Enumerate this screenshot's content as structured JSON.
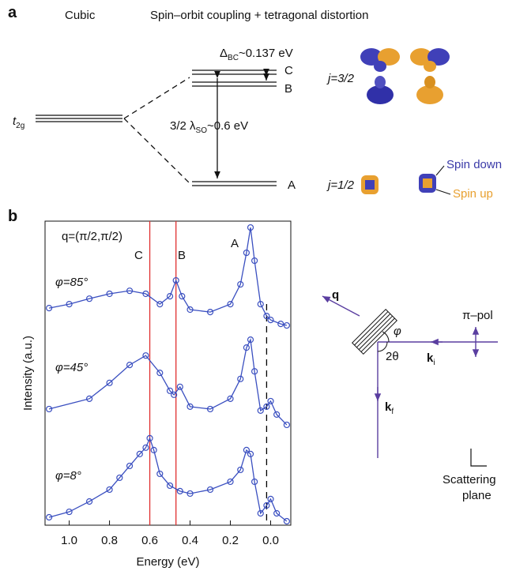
{
  "panel_a": {
    "label": "a",
    "col_cubic": "Cubic",
    "col_soc": "Spin–orbit coupling + tetragonal distortion",
    "t2g": [
      "t",
      "2g"
    ],
    "delta": [
      "Δ",
      "BC",
      "~0.137 eV"
    ],
    "level_c": "C",
    "level_b": "B",
    "level_a": "A",
    "j32": "j=3/2",
    "j12": "j=1/2",
    "soc": [
      "3/2 λ",
      "SO",
      "~0.6 eV"
    ],
    "spin_down": "Spin down",
    "spin_up": "Spin up"
  },
  "panel_b_label": "b",
  "chart_data": {
    "type": "line",
    "x_label": "Energy (eV)",
    "y_label": "Intensity (a.u.)",
    "annotation": "q=(π/2,π/2)",
    "peak_labels": [
      "C",
      "B",
      "A"
    ],
    "xlim": [
      1.12,
      -0.1
    ],
    "ylim": [
      0,
      10
    ],
    "xticks": [
      {
        "value": 1,
        "label": "1.0"
      },
      0.8,
      0.6,
      0.4,
      0.2,
      {
        "value": 0,
        "label": "0.0"
      }
    ],
    "vlines": [
      {
        "x": 0.6,
        "color": "#e03030",
        "style": "solid"
      },
      {
        "x": 0.47,
        "color": "#e03030",
        "style": "solid"
      },
      {
        "x": 0.02,
        "color": "#000000",
        "style": "dashed"
      }
    ],
    "series": [
      {
        "name": "φ=85°",
        "color": "#3a4fc0",
        "x": [
          1.1,
          1.0,
          0.9,
          0.8,
          0.7,
          0.62,
          0.55,
          0.5,
          0.47,
          0.44,
          0.4,
          0.3,
          0.2,
          0.15,
          0.12,
          0.1,
          0.08,
          0.05,
          0.02,
          0.0,
          -0.05,
          -0.08
        ],
        "values": [
          7.14,
          7.27,
          7.45,
          7.61,
          7.71,
          7.61,
          7.27,
          7.53,
          8.05,
          7.53,
          7.09,
          7.01,
          7.27,
          7.92,
          8.96,
          9.79,
          8.7,
          7.27,
          6.88,
          6.75,
          6.62,
          6.57
        ]
      },
      {
        "name": "φ=45°",
        "color": "#3a4fc0",
        "x": [
          1.1,
          0.9,
          0.8,
          0.7,
          0.62,
          0.55,
          0.5,
          0.48,
          0.45,
          0.4,
          0.3,
          0.2,
          0.15,
          0.12,
          0.1,
          0.08,
          0.05,
          0.02,
          0.0,
          -0.03,
          -0.08
        ],
        "values": [
          3.82,
          4.16,
          4.68,
          5.27,
          5.58,
          5.01,
          4.42,
          4.29,
          4.55,
          3.9,
          3.82,
          4.16,
          4.81,
          5.84,
          6.1,
          5.06,
          3.77,
          3.9,
          4.08,
          3.64,
          3.3
        ]
      },
      {
        "name": "φ=8°",
        "color": "#3a4fc0",
        "x": [
          1.1,
          1.0,
          0.9,
          0.8,
          0.75,
          0.7,
          0.65,
          0.62,
          0.6,
          0.58,
          0.55,
          0.5,
          0.45,
          0.4,
          0.3,
          0.2,
          0.15,
          0.12,
          0.1,
          0.08,
          0.05,
          0.02,
          0.0,
          -0.03,
          -0.08
        ],
        "values": [
          0.26,
          0.44,
          0.78,
          1.17,
          1.56,
          1.95,
          2.34,
          2.55,
          2.86,
          2.47,
          1.69,
          1.3,
          1.12,
          1.04,
          1.17,
          1.43,
          1.82,
          2.47,
          2.34,
          1.43,
          0.39,
          0.65,
          0.86,
          0.39,
          0.13
        ]
      }
    ]
  },
  "geometry": {
    "q": "q",
    "phi": "φ",
    "two_theta": "2θ",
    "pol": "π–pol",
    "ki": [
      "k",
      "i"
    ],
    "kf": [
      "k",
      "f"
    ],
    "plane": [
      "Scattering",
      "plane"
    ]
  }
}
